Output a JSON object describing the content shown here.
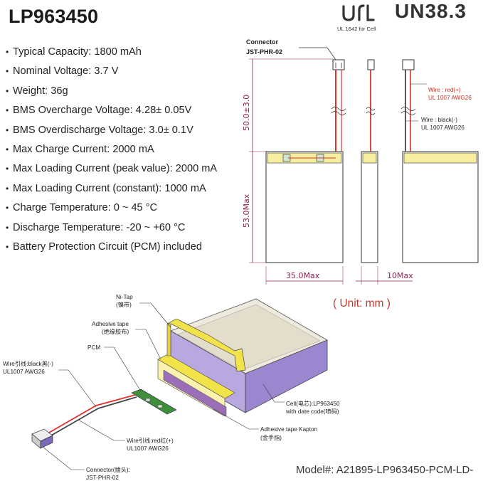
{
  "title": "LP963450",
  "specs": [
    "Typical Capacity: 1800 mAh",
    "Nominal Voltage: 3.7 V",
    "Weight: 36g",
    "BMS Overcharge Voltage: 4.28± 0.05V",
    "BMS Overdischarge Voltage: 3.0± 0.1V",
    "Max Charge Current: 2000 mA",
    "Max Loading Current (peak value): 2000 mA",
    "Max Loading Current (constant): 1000 mA",
    "Charge Temperature: 0 ~ 45 °C",
    "Discharge Temperature: -20 ~ +60 °C",
    "Battery Protection Circuit (PCM) included"
  ],
  "certifications": {
    "ul_caption": "UL 1642 for Cell",
    "un_label": "UN38.3"
  },
  "drawing": {
    "connector_label_1": "Connector",
    "connector_label_2": "JST-PHR-02",
    "wire_red_1": "Wire : red(+)",
    "wire_red_2": "UL 1007 AWG26",
    "wire_black_1": "Wire : black(-)",
    "wire_black_2": "UL 1007 AWG26",
    "dim_lead": "50.0±3.0",
    "dim_height": "53.0Max",
    "dim_width": "35.0Max",
    "dim_thickness": "10Max",
    "unit": "( Unit: mm )"
  },
  "exploded": {
    "ni_tap_1": "Ni-Tap",
    "ni_tap_2": "(镍带)",
    "adhesive_1": "Adhesive tape",
    "adhesive_2": "(绝缘胶布)",
    "pcm": "PCM",
    "wire_black_1": "Wire引线:black黑(-)",
    "wire_black_2": "UL1007 AWG26",
    "cell_1": "Cell(电芯):LP963450",
    "cell_2": "with date code(喷码)",
    "kapton_1": "Adhesive tape Kapton",
    "kapton_2": "(金手指)",
    "wire_red_1": "Wire引线:red红(+)",
    "wire_red_2": "UL1007 AWG26",
    "connector_1": "Connector(插头):",
    "connector_2": "JST-PHR-02"
  },
  "model": "Model#: A21895-LP963450-PCM-LD-",
  "colors": {
    "wire_red": "#e0312b",
    "wire_black": "#333333",
    "dimension": "#8b2050",
    "tape_yellow": "#f2e34a",
    "cell_purple": "#8a6fc4",
    "pcm_green": "#3f8f3a"
  }
}
